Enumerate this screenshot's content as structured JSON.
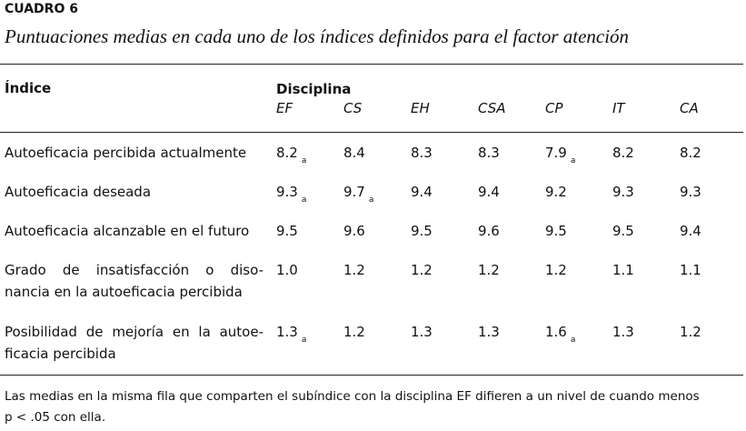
{
  "header": {
    "label": "CUADRO 6",
    "title": "Puntuaciones medias en cada uno de los índices definidos para el factor atención"
  },
  "table": {
    "index_header": "Índice",
    "group_header": "Disciplina",
    "columns": [
      "EF",
      "CS",
      "EH",
      "CSA",
      "CP",
      "IT",
      "CA"
    ],
    "rows": [
      {
        "label": [
          "Autoeficacia percibida actualmente"
        ],
        "cells": [
          {
            "text": "8.2",
            "sub": "a"
          },
          {
            "text": "8.4"
          },
          {
            "text": "8.3"
          },
          {
            "text": "8.3"
          },
          {
            "text": "7.9",
            "sub": "a"
          },
          {
            "text": "8.2"
          },
          {
            "text": "8.2"
          }
        ]
      },
      {
        "label": [
          "Autoeficacia deseada"
        ],
        "cells": [
          {
            "text": "9.3",
            "sub": "a"
          },
          {
            "text": "9.7",
            "sub": "a"
          },
          {
            "text": "9.4"
          },
          {
            "text": "9.4"
          },
          {
            "text": "9.2"
          },
          {
            "text": "9.3"
          },
          {
            "text": "9.3"
          }
        ]
      },
      {
        "label": [
          "Autoeficacia alcanzable en el futuro"
        ],
        "cells": [
          {
            "text": "9.5"
          },
          {
            "text": "9.6"
          },
          {
            "text": "9.5"
          },
          {
            "text": "9.6"
          },
          {
            "text": "9.5"
          },
          {
            "text": "9.5"
          },
          {
            "text": "9.4"
          }
        ]
      },
      {
        "label": [
          "Grado de insatisfacción o diso-",
          "nancia en la autoeficacia percibida"
        ],
        "cells": [
          {
            "text": "1.0"
          },
          {
            "text": "1.2"
          },
          {
            "text": "1.2"
          },
          {
            "text": "1.2"
          },
          {
            "text": "1.2"
          },
          {
            "text": "1.1"
          },
          {
            "text": "1.1"
          }
        ]
      },
      {
        "label": [
          "Posibilidad de mejoría en la autoe-",
          "ficacia percibida"
        ],
        "cells": [
          {
            "text": "1.3",
            "sub": "a"
          },
          {
            "text": "1.2"
          },
          {
            "text": "1.3"
          },
          {
            "text": "1.3"
          },
          {
            "text": "1.6",
            "sub": "a"
          },
          {
            "text": "1.3"
          },
          {
            "text": "1.2"
          }
        ]
      }
    ]
  },
  "footnote": [
    "Las medias en la misma fila que comparten el subíndice con la disciplina EF difieren a un nivel de cuando menos",
    "p < .05 con ella."
  ]
}
